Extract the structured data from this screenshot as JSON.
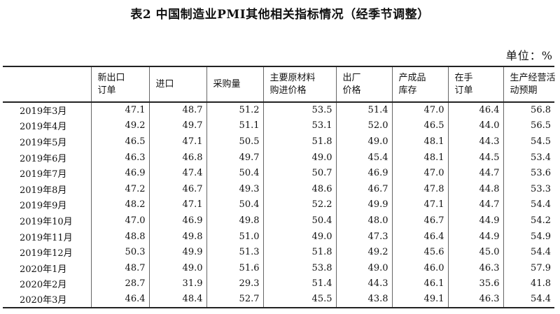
{
  "title": "表2 中国制造业PMI其他相关指标情况（经季节调整）",
  "unit_label": "单位：%",
  "columns": [
    {
      "line1": "",
      "line2": ""
    },
    {
      "line1": "新出口",
      "line2": "订单"
    },
    {
      "line1": "进口",
      "line2": ""
    },
    {
      "line1": "采购量",
      "line2": ""
    },
    {
      "line1": "主要原材料",
      "line2": "购进价格"
    },
    {
      "line1": "出厂",
      "line2": "价格"
    },
    {
      "line1": "产成品",
      "line2": "库存"
    },
    {
      "line1": "在手",
      "line2": "订单"
    },
    {
      "line1": "生产经营活",
      "line2": "动预期"
    }
  ],
  "rows": [
    {
      "month": "2019年3月",
      "values": [
        "47.1",
        "48.7",
        "51.2",
        "53.5",
        "51.4",
        "47.0",
        "46.4",
        "56.8"
      ]
    },
    {
      "month": "2019年4月",
      "values": [
        "49.2",
        "49.7",
        "51.1",
        "53.1",
        "52.0",
        "46.5",
        "44.0",
        "56.5"
      ]
    },
    {
      "month": "2019年5月",
      "values": [
        "46.5",
        "47.1",
        "50.5",
        "51.8",
        "49.0",
        "48.1",
        "44.3",
        "54.5"
      ]
    },
    {
      "month": "2019年6月",
      "values": [
        "46.3",
        "46.8",
        "49.7",
        "49.0",
        "45.4",
        "48.1",
        "44.5",
        "53.4"
      ]
    },
    {
      "month": "2019年7月",
      "values": [
        "46.9",
        "47.4",
        "50.4",
        "50.7",
        "46.9",
        "47.0",
        "44.7",
        "53.6"
      ]
    },
    {
      "month": "2019年8月",
      "values": [
        "47.2",
        "46.7",
        "49.3",
        "48.6",
        "46.7",
        "47.8",
        "44.8",
        "53.3"
      ]
    },
    {
      "month": "2019年9月",
      "values": [
        "48.2",
        "47.1",
        "50.4",
        "52.2",
        "49.9",
        "47.1",
        "44.7",
        "54.4"
      ]
    },
    {
      "month": "2019年10月",
      "values": [
        "47.0",
        "46.9",
        "49.8",
        "50.4",
        "48.0",
        "46.7",
        "44.9",
        "54.2"
      ]
    },
    {
      "month": "2019年11月",
      "values": [
        "48.8",
        "49.8",
        "51.0",
        "49.0",
        "47.3",
        "46.4",
        "44.9",
        "54.9"
      ]
    },
    {
      "month": "2019年12月",
      "values": [
        "50.3",
        "49.9",
        "51.3",
        "51.8",
        "49.2",
        "45.6",
        "45.0",
        "54.4"
      ]
    },
    {
      "month": "2020年1月",
      "values": [
        "48.7",
        "49.0",
        "51.6",
        "53.8",
        "49.0",
        "46.0",
        "46.3",
        "57.9"
      ]
    },
    {
      "month": "2020年2月",
      "values": [
        "28.7",
        "31.9",
        "29.3",
        "51.4",
        "44.3",
        "46.1",
        "35.6",
        "41.8"
      ]
    },
    {
      "month": "2020年3月",
      "values": [
        "46.4",
        "48.4",
        "52.7",
        "45.5",
        "43.8",
        "49.1",
        "46.3",
        "54.4"
      ]
    }
  ]
}
